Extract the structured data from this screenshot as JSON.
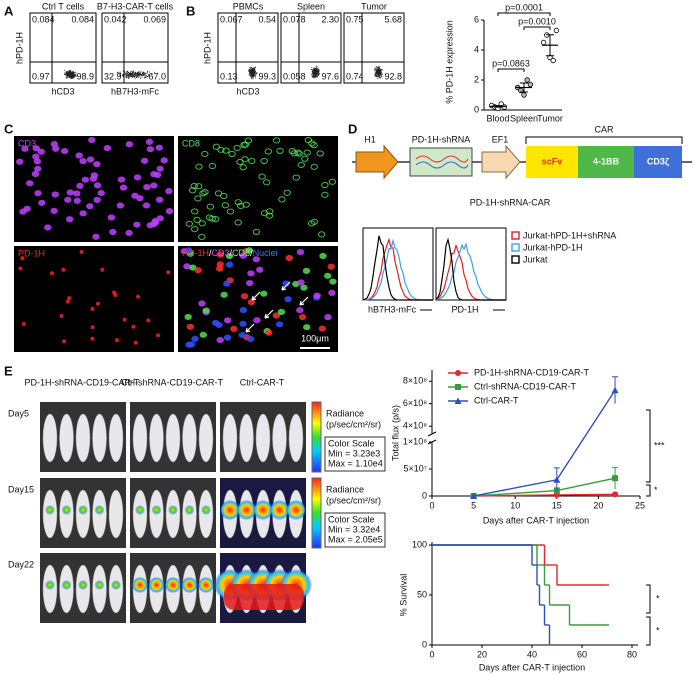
{
  "A": {
    "label": "A",
    "y_label": "hPD-1H",
    "plots": [
      {
        "title": "Ctrl T cells",
        "x_label": "hCD3",
        "quadrants": [
          "0.084",
          "0.084",
          "0.97",
          "98.9"
        ]
      },
      {
        "title": "B7-H3-CAR-T cells",
        "x_label": "hB7H3-mFc",
        "quadrants": [
          "0.042",
          "0.069",
          "32.9",
          "67.0"
        ]
      }
    ]
  },
  "B": {
    "label": "B",
    "y_label": "hPD-1H",
    "x_label": "hCD3",
    "plots": [
      {
        "title": "PBMCs",
        "quadrants": [
          "0.067",
          "0.54",
          "0.13",
          "99.3"
        ]
      },
      {
        "title": "Spleen",
        "quadrants": [
          "0.078",
          "2.30",
          "0.058",
          "97.6"
        ]
      },
      {
        "title": "Tumor",
        "quadrants": [
          "0.75",
          "5.68",
          "0.74",
          "92.8"
        ]
      }
    ]
  },
  "C": {
    "label": "C",
    "channels": [
      "CD3",
      "CD8",
      "PD-1H"
    ],
    "merge": [
      "PD-1H",
      "CD3",
      "CD8",
      "Nuclei"
    ],
    "merge_separator": "/",
    "scale_bar": "100μm"
  },
  "D": {
    "label": "D",
    "construct": {
      "promoter1": "H1",
      "shrna": "PD-1H-shRNA",
      "promoter2": "EF1",
      "car": "CAR",
      "domains": [
        "scFv",
        "4-1BB",
        "CD3ζ"
      ],
      "name": "PD-1H-shRNA-CAR"
    },
    "histograms": {
      "x_labels": [
        "hB7H3-mFc",
        "PD-1H"
      ],
      "legend": [
        {
          "name": "Jurkat-hPD-1H+shRNA",
          "color": "#e02020"
        },
        {
          "name": "Jurkat-hPD-1H",
          "color": "#3aa0e8"
        },
        {
          "name": "Jurkat",
          "color": "#000000"
        }
      ]
    }
  },
  "E": {
    "label": "E",
    "groups": [
      "PD-1H-shRNA-CD19-CAR-T",
      "Ctrl-shRNA-CD19-CAR-T",
      "Ctrl-CAR-T"
    ],
    "days": [
      "Day5",
      "Day15",
      "Day22"
    ],
    "scales": [
      {
        "title": "Radiance",
        "unit": "(p/sec/cm²/sr)",
        "scale_title": "Color Scale",
        "min": "Min = 3.23e3",
        "max": "Max = 1.10e4"
      },
      {
        "title": "Radiance",
        "unit": "(p/sec/cm²/sr)",
        "scale_title": "Color Scale",
        "min": "Min = 3.32e4",
        "max": "Max = 2.05e5"
      }
    ]
  },
  "chart_data": [
    {
      "type": "dot",
      "y_label": "% PD-1H expression",
      "categories": [
        "Blood",
        "Spleen",
        "Tumor"
      ],
      "points": [
        [
          0.3,
          0.2,
          0.1,
          0.4,
          0.2
        ],
        [
          1.5,
          1.3,
          1.0,
          2.0,
          1.7
        ],
        [
          4.5,
          5.0,
          3.5,
          3.3,
          5.3
        ]
      ],
      "values": [
        0.24,
        1.5,
        4.32
      ],
      "errors": [
        0.05,
        0.3,
        0.7
      ],
      "ylim": [
        0,
        6
      ],
      "yticks": [
        0,
        2,
        4,
        6
      ],
      "annotations": [
        "p=0.0001",
        "p=0.0010",
        "p=0.0863"
      ]
    },
    {
      "type": "line",
      "y_label": "Total flux (p/s)",
      "x_label": "Days after  CAR-T injection",
      "x": [
        5,
        15,
        22
      ],
      "series": [
        {
          "name": "PD-1H-shRNA-CD19-CAR-T",
          "color": "#e8262b",
          "marker": "circle",
          "values": [
            0,
            2000000,
            3000000
          ],
          "errors": [
            0,
            1000000,
            1500000
          ]
        },
        {
          "name": "Ctrl-shRNA-CD19-CAR-T",
          "color": "#3c9a3c",
          "marker": "square",
          "values": [
            0,
            10000000,
            33000000
          ],
          "errors": [
            0,
            5000000,
            20000000
          ]
        },
        {
          "name": "Ctrl-CAR-T",
          "color": "#2f4fbf",
          "marker": "triangle",
          "values": [
            0,
            30000000,
            720000000
          ],
          "errors": [
            0,
            22000000,
            120000000
          ]
        }
      ],
      "xlim": [
        0,
        25
      ],
      "xticks": [
        0,
        5,
        10,
        15,
        20,
        25
      ],
      "ylim": [
        0,
        900000000
      ],
      "y_break": [
        100000000,
        330000000
      ],
      "yticks": [
        0,
        {
          "value": 50000000,
          "label": "5×10⁷"
        },
        {
          "value": 100000000,
          "label": "1×10⁸"
        },
        {
          "value": 400000000,
          "label": "4×10⁸"
        },
        {
          "value": 600000000,
          "label": "6×10⁸"
        },
        {
          "value": 800000000,
          "label": "8×10⁸"
        }
      ],
      "annotations": [
        "***",
        "*"
      ]
    },
    {
      "type": "step",
      "y_label": "% Survival",
      "x_label": "Days after  CAR-T injection",
      "xlim": [
        0,
        80
      ],
      "xticks": [
        0,
        20,
        40,
        60,
        80
      ],
      "ylim": [
        0,
        100
      ],
      "yticks": [
        0,
        50,
        100
      ],
      "series": [
        {
          "color": "#e8262b",
          "x": [
            0,
            45,
            50,
            70
          ],
          "values": [
            100,
            80,
            60,
            60
          ]
        },
        {
          "color": "#3c9a3c",
          "x": [
            0,
            42,
            45,
            47,
            55,
            70
          ],
          "values": [
            100,
            80,
            60,
            40,
            20,
            20
          ]
        },
        {
          "color": "#2f4fbf",
          "x": [
            0,
            40,
            42,
            43,
            45,
            47
          ],
          "values": [
            100,
            80,
            60,
            40,
            20,
            0
          ]
        }
      ],
      "annotations": [
        "*",
        "*"
      ]
    }
  ]
}
